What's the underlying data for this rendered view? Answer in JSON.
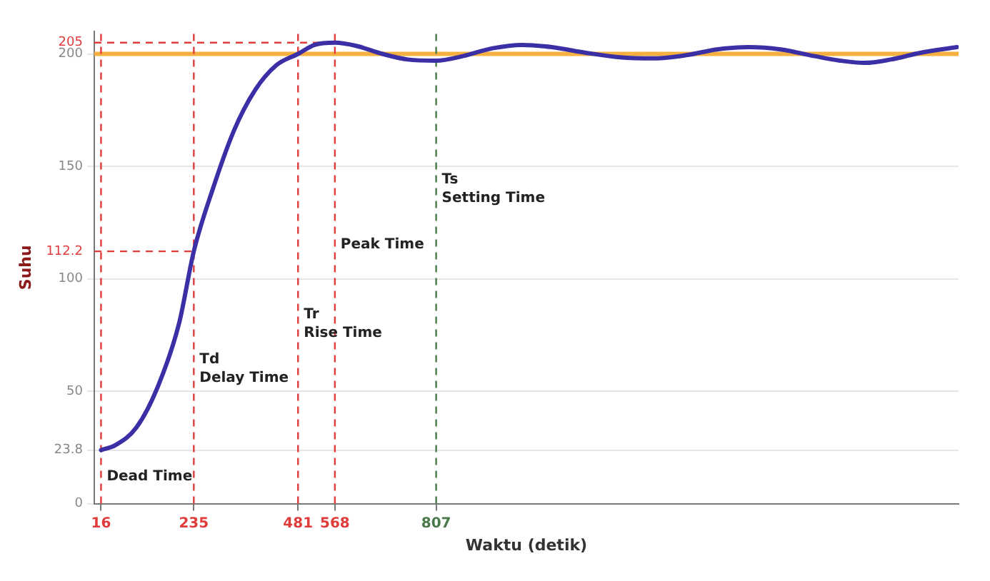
{
  "chart_data": {
    "type": "line",
    "xlabel": "Waktu (detik)",
    "ylabel": "Suhu",
    "x": [
      16,
      50,
      100,
      150,
      200,
      235,
      280,
      330,
      380,
      430,
      481,
      520,
      568,
      620,
      680,
      740,
      807,
      870,
      940,
      1010,
      1080,
      1160,
      1240,
      1323,
      1400,
      1470,
      1544,
      1620,
      1700,
      1760,
      1818,
      1880,
      1950,
      2036
    ],
    "series": [
      {
        "color": "#3b2fa6",
        "values": [
          23.8,
          26,
          34,
          52,
          80,
          112.2,
          140,
          166,
          184,
          195,
          200,
          204,
          205,
          203.5,
          200,
          197.5,
          197,
          199,
          202.5,
          204,
          203,
          200.5,
          198.5,
          198,
          199.5,
          202,
          203,
          202,
          199,
          197,
          196,
          197.5,
          200.5,
          203
        ]
      }
    ],
    "xlim": [
      0,
      2040
    ],
    "xticks": [
      16,
      235,
      481,
      568,
      807
    ],
    "ylim": [
      0,
      210
    ],
    "yticks": [
      0,
      23.8,
      50,
      100,
      112.2,
      150,
      200,
      205
    ],
    "grid": "y",
    "legend": false,
    "marker": "none",
    "line_style": "solid",
    "ref_lines": [
      {
        "axis": "y",
        "value": 200,
        "color": "#f5b041",
        "line_style": "solid"
      },
      {
        "axis": "y",
        "value": 205,
        "color": "#e03c3c",
        "line_style": "dashed"
      },
      {
        "axis": "y",
        "value": 112.2,
        "color": "#e03c3c",
        "line_style": "dashed"
      },
      {
        "axis": "x",
        "value": 16,
        "color": "#e03c3c",
        "line_style": "dashed"
      },
      {
        "axis": "x",
        "value": 235,
        "color": "#e03c3c",
        "line_style": "dashed"
      },
      {
        "axis": "x",
        "value": 481,
        "color": "#e03c3c",
        "line_style": "dashed"
      },
      {
        "axis": "x",
        "value": 568,
        "color": "#e03c3c",
        "line_style": "dashed"
      },
      {
        "axis": "x",
        "value": 807,
        "color": "#4a7a4a",
        "line_style": "dashed"
      }
    ],
    "annotations": [
      {
        "text": "Dead Time",
        "x": 16,
        "y": 12
      },
      {
        "text": "Td\nDelay Time",
        "x": 235,
        "y": 60
      },
      {
        "text": "Tr\nRise Time",
        "x": 481,
        "y": 80
      },
      {
        "text": "Peak Time",
        "x": 568,
        "y": 115
      },
      {
        "text": "Ts\nSetting Time",
        "x": 807,
        "y": 140
      }
    ]
  }
}
